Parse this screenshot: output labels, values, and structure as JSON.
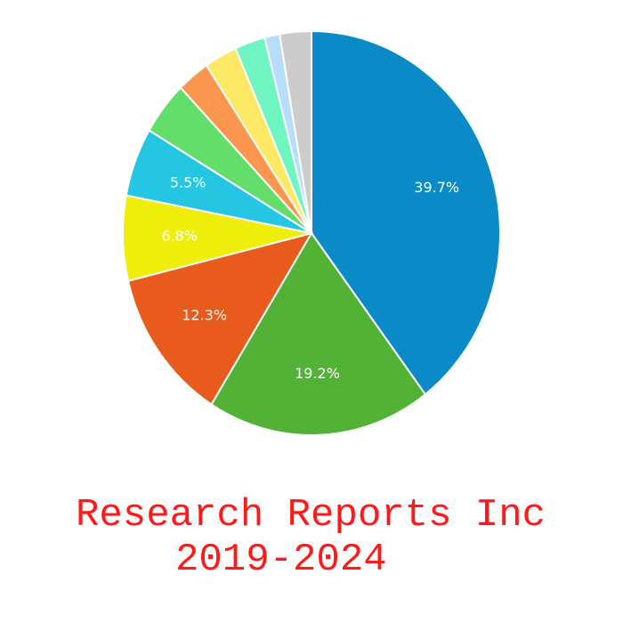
{
  "chart_data": {
    "type": "pie",
    "title": [
      "Research Reports Inc",
      "2019-2024"
    ],
    "values": [
      39.7,
      19.2,
      12.3,
      6.8,
      5.5,
      4.3,
      2.8,
      2.8,
      2.6,
      1.3,
      2.7
    ],
    "value_labels": [
      "39.7%",
      "19.2%",
      "12.3%",
      "6.8%",
      "5.5%",
      null,
      null,
      null,
      null,
      null,
      null
    ],
    "colors": [
      "#0a8ac6",
      "#52b236",
      "#e95b1c",
      "#eeee0a",
      "#25c6e2",
      "#64de6a",
      "#fb9651",
      "#fde966",
      "#6ff5c2",
      "#b7ddfd",
      "#cccccc"
    ]
  }
}
